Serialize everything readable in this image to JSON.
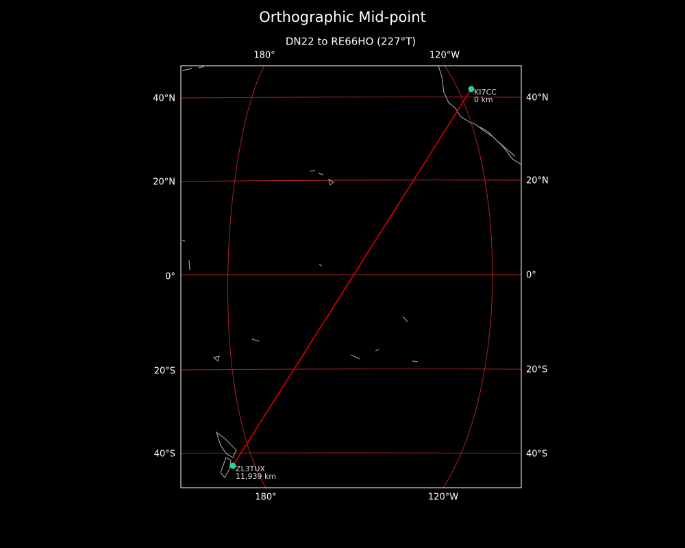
{
  "title": "Orthographic Mid-point",
  "subtitle": "DN22 to RE66HO (227°T)",
  "map": {
    "top_labels": [
      "180°",
      "120°W"
    ],
    "bottom_labels": [
      "180°",
      "120°W"
    ],
    "left_labels": [
      "40°N",
      "20°N",
      "0°",
      "20°S",
      "40°S"
    ],
    "right_labels": [
      "40°N",
      "20°N",
      "0°",
      "20°S",
      "40°S"
    ]
  },
  "stations": [
    {
      "call": "KI7CC",
      "distance": "0 km"
    },
    {
      "call": "ZL3TUX",
      "distance": "11,939 km"
    }
  ]
}
